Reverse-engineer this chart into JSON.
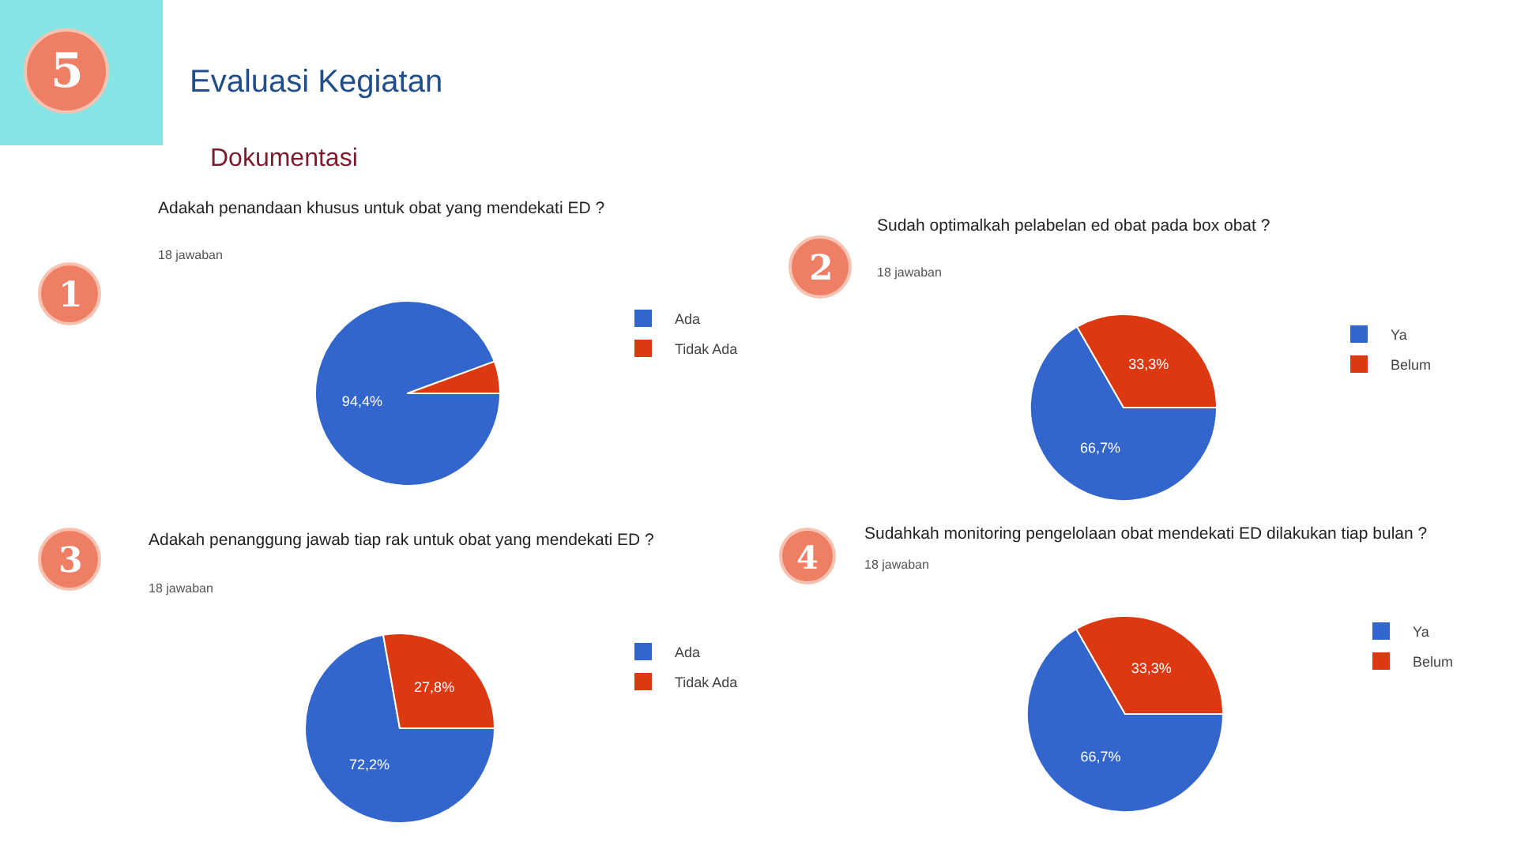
{
  "chart_data": [
    {
      "type": "other",
      "title": "Evaluasi Kegiatan",
      "subtitle": "Dokumentasi",
      "annotations": [
        "5"
      ]
    },
    {
      "type": "pie",
      "title": "Adakah penandaan khusus untuk obat yang mendekati ED ?",
      "subtitle": "18 jawaban",
      "annotations": [
        "1"
      ],
      "categories": [
        "Ada",
        "Tidak Ada"
      ],
      "values": [
        94.4,
        5.6
      ],
      "colors": [
        "#3366cc",
        "#dc3912"
      ],
      "value_labels": [
        "94,4%",
        null
      ],
      "legend": "top right"
    },
    {
      "type": "pie",
      "title": "Sudah optimalkah pelabelan ed obat pada box obat ?",
      "subtitle": "18 jawaban",
      "annotations": [
        "2"
      ],
      "categories": [
        "Ya",
        "Belum"
      ],
      "values": [
        66.7,
        33.3
      ],
      "colors": [
        "#3366cc",
        "#dc3912"
      ],
      "value_labels": [
        "66,7%",
        "33,3%"
      ],
      "legend": "top right"
    },
    {
      "type": "pie",
      "title": "Adakah penanggung jawab tiap rak untuk obat yang mendekati ED ?",
      "subtitle": "18 jawaban",
      "annotations": [
        "3"
      ],
      "categories": [
        "Ada",
        "Tidak Ada"
      ],
      "values": [
        72.2,
        27.8
      ],
      "colors": [
        "#3366cc",
        "#dc3912"
      ],
      "value_labels": [
        "72,2%",
        "27,8%"
      ],
      "legend": "top right"
    },
    {
      "type": "pie",
      "title": "Sudahkah monitoring pengelolaan obat mendekati ED dilakukan tiap bulan ?",
      "subtitle": "18 jawaban",
      "annotations": [
        "4"
      ],
      "categories": [
        "Ya",
        "Belum"
      ],
      "values": [
        66.7,
        33.3
      ],
      "colors": [
        "#3366cc",
        "#dc3912"
      ],
      "value_labels": [
        "66,7%",
        "33,3%"
      ],
      "legend": "top right"
    }
  ]
}
